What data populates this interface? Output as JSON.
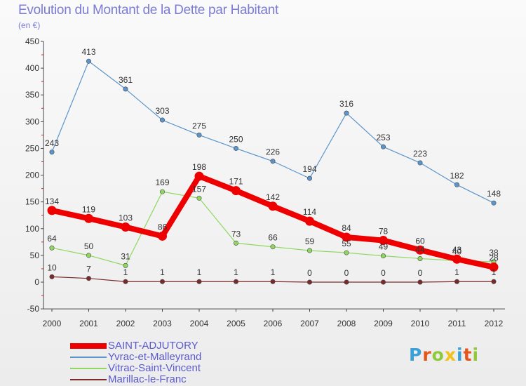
{
  "title": "Evolution du Montant de la Dette par Habitant",
  "subtitle": "(en €)",
  "logo": {
    "text": "Proxiti",
    "colors": [
      "#3aa0d8",
      "#e5561c",
      "#8fc93a",
      "#f2c218",
      "#3aa0d8",
      "#e5561c",
      "#8fc93a"
    ]
  },
  "chart_data": {
    "type": "line",
    "title": "Evolution du Montant de la Dette par Habitant",
    "subtitle": "(en €)",
    "x": [
      "2000",
      "2001",
      "2002",
      "2003",
      "2004",
      "2005",
      "2006",
      "2007",
      "2008",
      "2009",
      "2010",
      "2011",
      "2012"
    ],
    "ylim": [
      -50,
      450
    ],
    "yticks": [
      -50,
      0,
      50,
      100,
      150,
      200,
      250,
      300,
      350,
      400,
      450
    ],
    "grid": false,
    "legend_position": "bottom-left",
    "series": [
      {
        "name": "SAINT-ADJUTORY",
        "color": "#ee0000",
        "values": [
          134,
          119,
          103,
          86,
          198,
          171,
          142,
          114,
          84,
          78,
          60,
          43,
          28
        ]
      },
      {
        "name": "Yvrac-et-Malleyrand",
        "color": "#5b95cb",
        "values": [
          243,
          413,
          361,
          303,
          275,
          250,
          226,
          194,
          316,
          253,
          223,
          182,
          148
        ]
      },
      {
        "name": "Vitrac-Saint-Vincent",
        "color": "#8fd760",
        "values": [
          64,
          50,
          31,
          169,
          157,
          73,
          66,
          59,
          55,
          49,
          44,
          40,
          38
        ]
      },
      {
        "name": "Marillac-le-Franc",
        "color": "#7a2a2a",
        "values": [
          10,
          7,
          1,
          1,
          1,
          1,
          1,
          0,
          0,
          0,
          0,
          1,
          1
        ]
      }
    ]
  }
}
